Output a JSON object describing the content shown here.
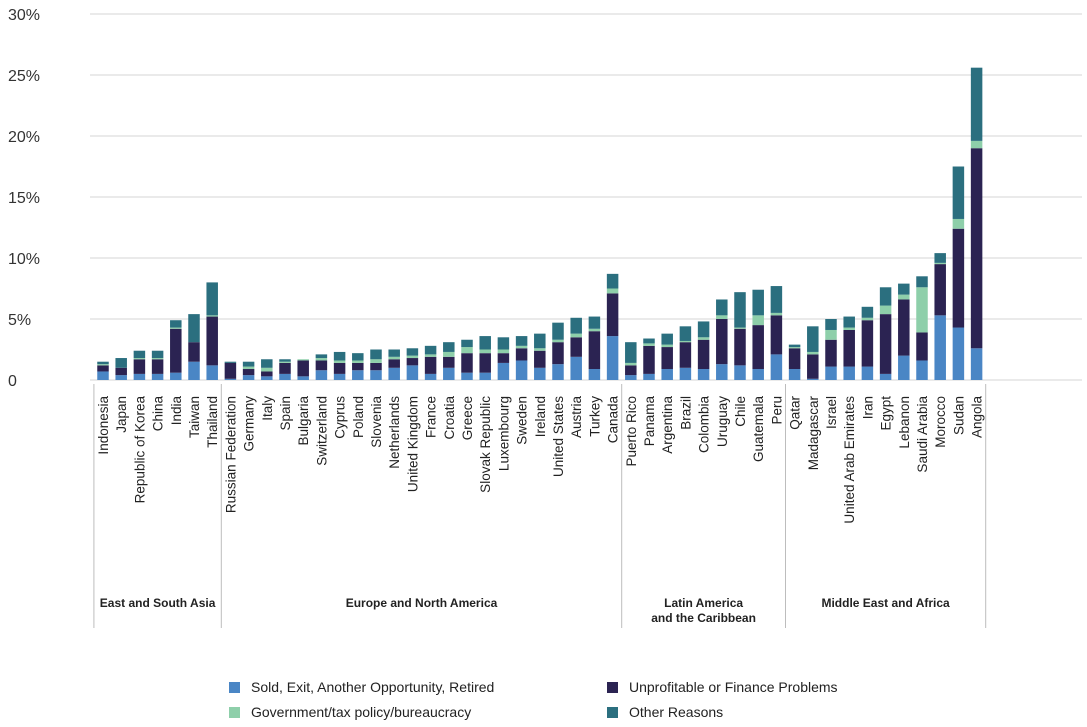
{
  "chart_data": {
    "type": "bar",
    "stacked": true,
    "ylim": [
      0,
      30
    ],
    "yticks": [
      {
        "value": 0,
        "label": "0"
      },
      {
        "value": 5,
        "label": "5%"
      },
      {
        "value": 10,
        "label": "10%"
      },
      {
        "value": 15,
        "label": "15%"
      },
      {
        "value": 20,
        "label": "20%"
      },
      {
        "value": 25,
        "label": "25%"
      },
      {
        "value": 30,
        "label": "30%"
      }
    ],
    "grid": true,
    "legend_position": "bottom",
    "categories": [
      "Indonesia",
      "Japan",
      "Republic of Korea",
      "China",
      "India",
      "Taiwan",
      "Thailand",
      "Russian Federation",
      "Germany",
      "Italy",
      "Spain",
      "Bulgaria",
      "Switzerland",
      "Cyprus",
      "Poland",
      "Slovenia",
      "Netherlands",
      "United Kingdom",
      "France",
      "Croatia",
      "Greece",
      "Slovak Republic",
      "Luxembourg",
      "Sweden",
      "Ireland",
      "United States",
      "Austria",
      "Turkey",
      "Canada",
      "Puerto Rico",
      "Panama",
      "Argentina",
      "Brazil",
      "Colombia",
      "Uruguay",
      "Chile",
      "Guatemala",
      "Peru",
      "Qatar",
      "Madagascar",
      "Israel",
      "United Arab Emirates",
      "Iran",
      "Egypt",
      "Lebanon",
      "Saudi Arabia",
      "Morocco",
      "Sudan",
      "Angola"
    ],
    "series": [
      {
        "name": "Sold, Exit, Another Opportunity, Retired",
        "color": "#4a86c5",
        "values": [
          0.7,
          0.4,
          0.5,
          0.5,
          0.6,
          1.5,
          1.2,
          0.1,
          0.4,
          0.3,
          0.5,
          0.3,
          0.8,
          0.5,
          0.8,
          0.8,
          1.0,
          1.2,
          0.5,
          1.0,
          0.6,
          0.6,
          1.4,
          1.6,
          1.0,
          1.3,
          1.9,
          0.9,
          3.6,
          0.4,
          0.5,
          0.9,
          1.0,
          0.9,
          1.3,
          1.2,
          0.9,
          2.1,
          0.9,
          0.1,
          1.1,
          1.1,
          1.1,
          0.5,
          2.0,
          1.6,
          5.3,
          4.3,
          2.6
        ]
      },
      {
        "name": "Unprofitable or Finance Problems",
        "color": "#2b2352",
        "values": [
          0.5,
          0.6,
          1.2,
          1.2,
          3.6,
          1.6,
          4.0,
          1.3,
          0.5,
          0.4,
          0.9,
          1.3,
          0.8,
          0.9,
          0.6,
          0.6,
          0.7,
          0.6,
          1.4,
          0.9,
          1.6,
          1.6,
          0.8,
          1.0,
          1.4,
          1.8,
          1.6,
          3.1,
          3.5,
          0.8,
          2.3,
          1.8,
          2.1,
          2.4,
          3.7,
          3.0,
          3.6,
          3.2,
          1.7,
          2.0,
          2.2,
          3.0,
          3.8,
          4.9,
          4.6,
          2.3,
          4.2,
          8.1,
          16.4
        ]
      },
      {
        "name": "Government/tax policy/bureaucracy",
        "color": "#8ecfaa",
        "values": [
          0.1,
          0.0,
          0.1,
          0.1,
          0.1,
          0.0,
          0.1,
          0.0,
          0.2,
          0.3,
          0.1,
          0.1,
          0.2,
          0.2,
          0.2,
          0.3,
          0.2,
          0.2,
          0.2,
          0.4,
          0.5,
          0.3,
          0.3,
          0.2,
          0.2,
          0.2,
          0.3,
          0.2,
          0.4,
          0.2,
          0.2,
          0.2,
          0.1,
          0.2,
          0.3,
          0.1,
          0.8,
          0.2,
          0.1,
          0.2,
          0.8,
          0.2,
          0.2,
          0.7,
          0.4,
          3.7,
          0.1,
          0.8,
          0.6
        ]
      },
      {
        "name": "Other Reasons",
        "color": "#2b6f7f",
        "values": [
          0.2,
          0.8,
          0.6,
          0.6,
          0.6,
          2.3,
          2.7,
          0.1,
          0.4,
          0.7,
          0.2,
          0.0,
          0.3,
          0.7,
          0.6,
          0.8,
          0.6,
          0.6,
          0.7,
          0.8,
          0.6,
          1.1,
          1.0,
          0.8,
          1.2,
          1.4,
          1.3,
          1.0,
          1.2,
          1.7,
          0.4,
          0.9,
          1.2,
          1.3,
          1.3,
          2.9,
          2.1,
          2.2,
          0.2,
          2.1,
          0.9,
          0.9,
          0.9,
          1.5,
          0.9,
          0.9,
          0.8,
          4.3,
          6.0
        ]
      }
    ],
    "groups": [
      {
        "label_lines": [
          "East and South Asia"
        ],
        "start": 0,
        "end": 6
      },
      {
        "label_lines": [
          "Europe and North America"
        ],
        "start": 7,
        "end": 28
      },
      {
        "label_lines": [
          "Latin America",
          "and the Caribbean"
        ],
        "start": 29,
        "end": 37
      },
      {
        "label_lines": [
          "Middle East and Africa"
        ],
        "start": 38,
        "end": 48
      }
    ]
  },
  "legend": [
    {
      "label": "Sold, Exit, Another Opportunity, Retired",
      "color": "#4a86c5"
    },
    {
      "label": "Unprofitable or Finance Problems",
      "color": "#2b2352"
    },
    {
      "label": "Government/tax policy/bureaucracy",
      "color": "#8ecfaa"
    },
    {
      "label": "Other Reasons",
      "color": "#2b6f7f"
    }
  ]
}
